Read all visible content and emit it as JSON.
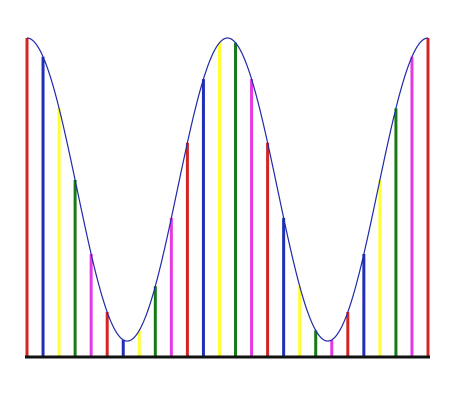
{
  "chart_data": {
    "type": "bar",
    "x_range": [
      0,
      1
    ],
    "y_range": [
      0,
      1
    ],
    "curve": {
      "kind": "cosine",
      "periods": 2,
      "min_value": 0.05,
      "max_value": 1.0,
      "stroke": "#1f2aa8"
    },
    "bar_count": 26,
    "bar_colors": [
      "#d42424",
      "#1f2fb8",
      "#ffff33",
      "#177a17",
      "#e43ae4"
    ],
    "baseline_color": "#111111",
    "curve_color": "#1f2aa8"
  }
}
